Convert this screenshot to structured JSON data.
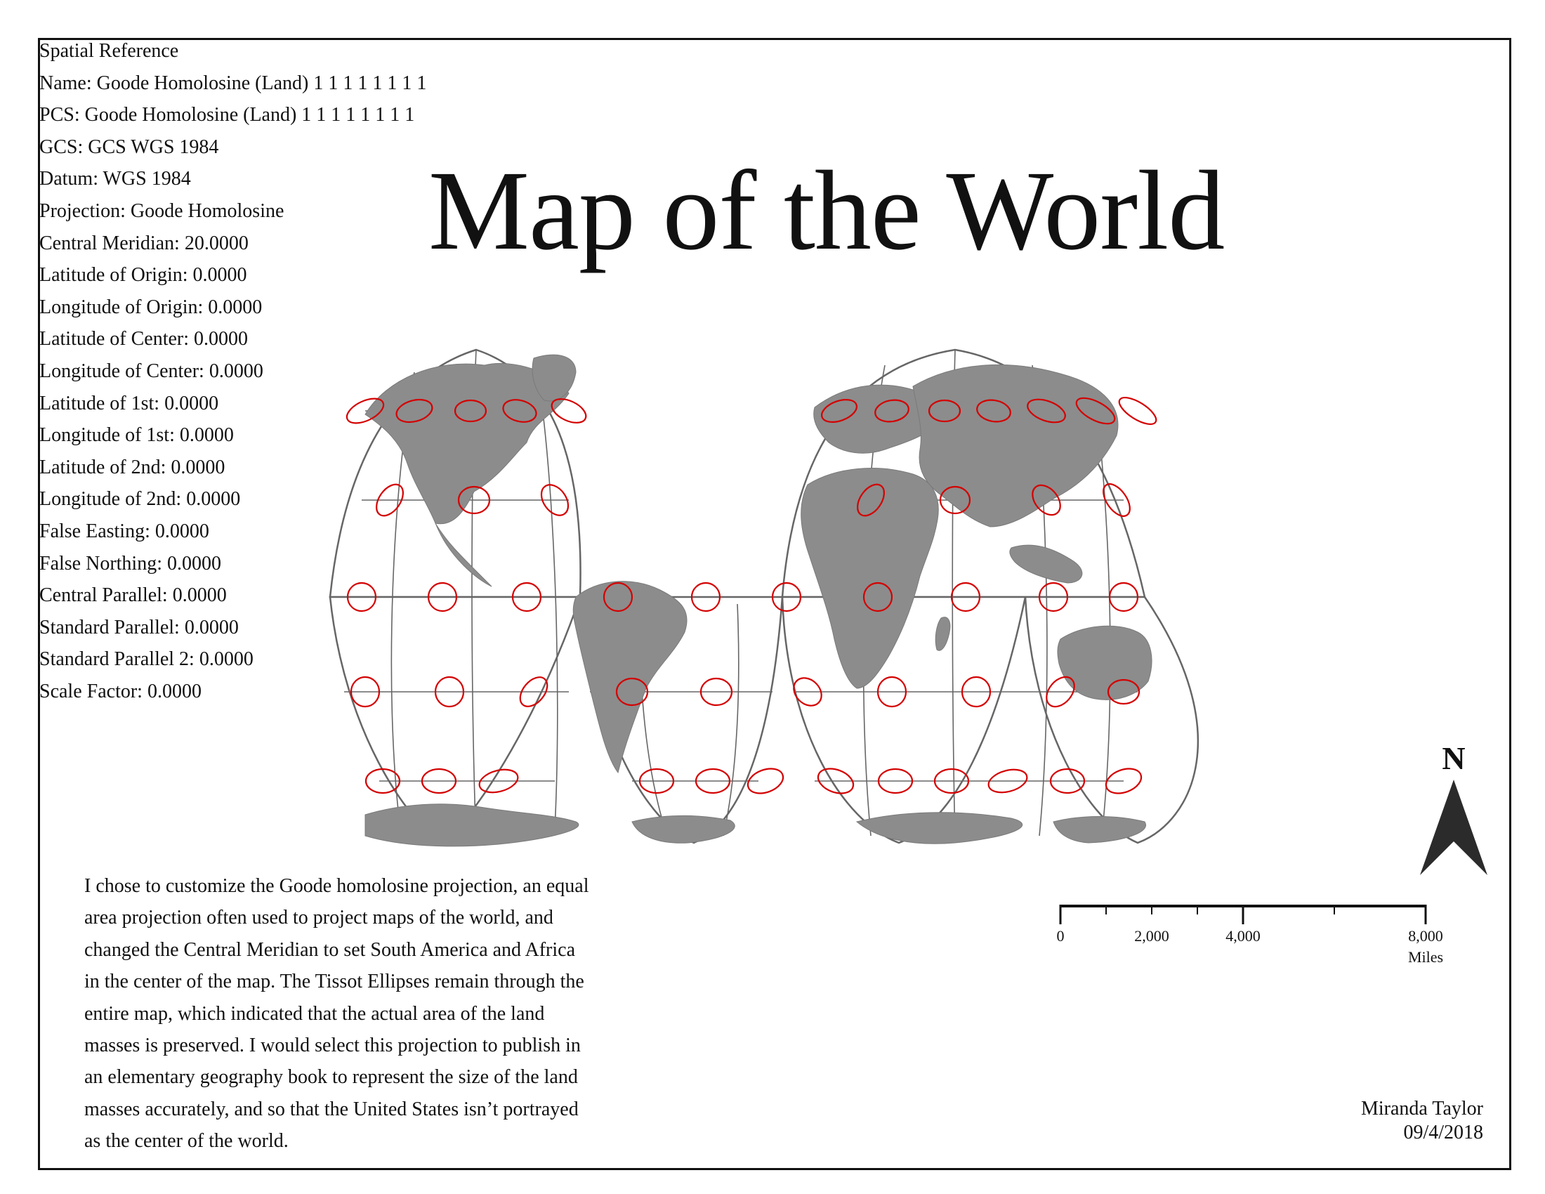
{
  "title": "Map of the World",
  "spatial_reference": [
    "Spatial Reference",
    "Name: Goode Homolosine (Land) 1 1 1 1 1 1 1 1",
    "PCS: Goode Homolosine (Land) 1 1 1 1 1 1 1 1",
    "GCS: GCS WGS 1984",
    "Datum: WGS 1984",
    "Projection: Goode Homolosine",
    "Central Meridian: 20.0000",
    "Latitude of Origin: 0.0000",
    "Longitude of Origin: 0.0000",
    "Latitude of Center: 0.0000",
    "Longitude of Center: 0.0000",
    "Latitude of 1st: 0.0000",
    "Longitude of 1st: 0.0000",
    "Latitude of 2nd: 0.0000",
    "Longitude of 2nd: 0.0000",
    "False Easting: 0.0000",
    "False Northing: 0.0000",
    "Central Parallel: 0.0000",
    "Standard Parallel: 0.0000",
    "Standard Parallel 2: 0.0000",
    "Scale Factor: 0.0000"
  ],
  "description": [
    "I chose to customize the Goode homolosine projection, an equal",
    "area projection often used to project maps of the world, and",
    "changed the Central Meridian to set South America and Africa",
    "in the center of the map. The Tissot Ellipses remain through the",
    "entire map, which indicated that the actual area of the land",
    "masses is preserved. I would select this projection to publish in",
    "an elementary geography book to represent the size of the land",
    "masses accurately, and so that the United States isn’t portrayed",
    "as the center of the world."
  ],
  "north_arrow": {
    "label": "N"
  },
  "scale_bar": {
    "labels": [
      "0",
      "2,000",
      "4,000",
      "8,000"
    ],
    "unit": "Miles"
  },
  "signature": {
    "author": "Miranda Taylor",
    "date": "09/4/2018"
  },
  "colors": {
    "land": "#8c8c8c",
    "graticule": "#666666",
    "tissot": "#d40000",
    "text": "#111111",
    "arrow": "#2b2b2b"
  }
}
